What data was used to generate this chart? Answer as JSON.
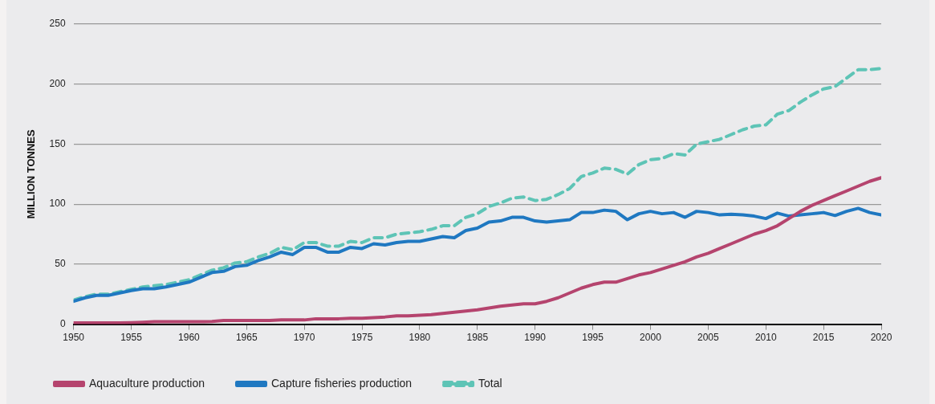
{
  "chart_data": {
    "type": "line",
    "ylabel": "MILLION TONNES",
    "xlim": [
      1950,
      2020
    ],
    "xticks": [
      1950,
      1955,
      1960,
      1965,
      1970,
      1975,
      1980,
      1985,
      1990,
      1995,
      2000,
      2005,
      2010,
      2015,
      2020
    ],
    "ylim": [
      0,
      250
    ],
    "yticks": [
      0,
      50,
      100,
      150,
      200,
      250
    ],
    "grid": "y",
    "legend": "bottom",
    "marker": "none",
    "x": [
      1950,
      1951,
      1952,
      1953,
      1954,
      1955,
      1956,
      1957,
      1958,
      1959,
      1960,
      1961,
      1962,
      1963,
      1964,
      1965,
      1966,
      1967,
      1968,
      1969,
      1970,
      1971,
      1972,
      1973,
      1974,
      1975,
      1976,
      1977,
      1978,
      1979,
      1980,
      1981,
      1982,
      1983,
      1984,
      1985,
      1986,
      1987,
      1988,
      1989,
      1990,
      1991,
      1992,
      1993,
      1994,
      1995,
      1996,
      1997,
      1998,
      1999,
      2000,
      2001,
      2002,
      2003,
      2004,
      2005,
      2006,
      2007,
      2008,
      2009,
      2010,
      2011,
      2012,
      2013,
      2014,
      2015,
      2016,
      2017,
      2018,
      2019,
      2020
    ],
    "series": [
      {
        "name": "Aquaculture production",
        "color": "#b5446e",
        "line_style": "solid",
        "values": [
          1,
          1,
          1,
          1,
          1,
          1.2,
          1.5,
          2,
          2,
          2,
          2,
          2,
          2.2,
          3,
          3,
          3,
          3,
          3,
          3.5,
          3.5,
          3.5,
          4.5,
          4.5,
          4.5,
          5,
          5,
          5.5,
          6,
          7,
          7,
          7.5,
          8,
          9,
          10,
          11,
          12,
          13.5,
          15,
          16,
          17,
          17,
          19,
          22,
          26,
          30,
          33,
          35,
          35,
          38,
          41,
          43,
          46,
          49,
          52,
          56,
          59,
          63,
          67,
          71,
          75,
          78,
          82,
          88,
          94,
          99,
          103,
          107,
          111,
          115,
          119,
          122
        ]
      },
      {
        "name": "Capture fisheries production",
        "color": "#1f78c1",
        "line_style": "solid",
        "values": [
          19,
          22,
          24,
          24,
          26,
          28,
          29.5,
          29.5,
          31,
          33,
          35,
          39,
          43,
          44,
          48,
          49,
          53,
          56,
          60,
          58,
          64,
          64,
          60,
          60,
          64,
          63,
          67,
          66,
          68,
          69,
          69,
          71,
          73,
          72,
          78,
          80,
          85,
          86,
          89,
          89,
          86,
          85,
          86,
          87,
          93,
          93,
          95,
          94,
          87,
          92,
          94,
          92,
          93,
          89,
          94,
          93,
          91,
          91.5,
          91,
          90,
          88,
          92.5,
          90,
          91,
          92,
          93,
          90.5,
          94,
          96.5,
          93,
          91
        ]
      },
      {
        "name": "Total",
        "color": "#5ec4b6",
        "line_style": "dashed",
        "values": [
          20,
          23,
          25,
          25,
          27,
          29,
          31,
          32,
          33,
          35,
          37,
          41,
          45,
          47,
          51,
          52,
          56,
          59,
          64,
          62,
          68,
          68,
          65,
          65,
          69,
          68,
          72,
          72,
          75,
          76,
          77,
          79,
          82,
          82,
          89,
          92,
          98,
          101,
          105,
          106,
          103,
          104,
          108,
          113,
          123,
          126,
          130,
          129,
          125,
          133,
          137,
          138,
          142,
          141,
          150,
          152,
          154,
          158,
          162,
          165,
          166,
          175,
          178,
          185,
          191,
          196,
          198,
          205,
          212,
          212,
          213
        ]
      }
    ]
  }
}
